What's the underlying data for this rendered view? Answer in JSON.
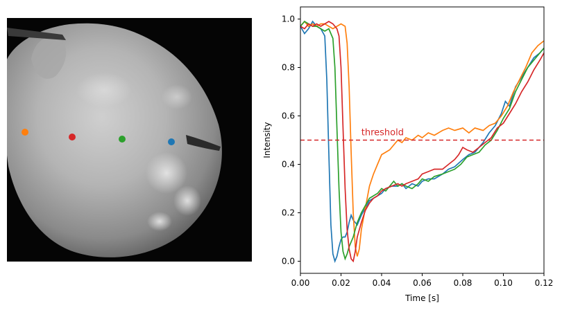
{
  "image_panel": {
    "markers": [
      {
        "name": "orange",
        "color": "#ff7f0e"
      },
      {
        "name": "red",
        "color": "#d62728"
      },
      {
        "name": "green",
        "color": "#2ca02c"
      },
      {
        "name": "blue",
        "color": "#1f77b4"
      }
    ]
  },
  "chart_data": {
    "type": "line",
    "title": "",
    "xlabel": "Time [s]",
    "ylabel": "Intensity",
    "xlim": [
      0,
      0.12
    ],
    "ylim": [
      -0.05,
      1.05
    ],
    "xticks": [
      0.0,
      0.02,
      0.04,
      0.06,
      0.08,
      0.1,
      0.12
    ],
    "xtick_labels": [
      "0.00",
      "0.02",
      "0.04",
      "0.06",
      "0.08",
      "0.10",
      "0.12"
    ],
    "yticks": [
      0.0,
      0.2,
      0.4,
      0.6,
      0.8,
      1.0
    ],
    "ytick_labels": [
      "0.0",
      "0.2",
      "0.4",
      "0.6",
      "0.8",
      "1.0"
    ],
    "grid": false,
    "threshold": {
      "value": 0.5,
      "label": "threshold",
      "color": "#d62728",
      "style": "dashed"
    },
    "series": [
      {
        "color": "#1f77b4",
        "points": [
          [
            0,
            0.97
          ],
          [
            0.002,
            0.94
          ],
          [
            0.004,
            0.96
          ],
          [
            0.006,
            0.99
          ],
          [
            0.008,
            0.97
          ],
          [
            0.01,
            0.96
          ],
          [
            0.012,
            0.93
          ],
          [
            0.013,
            0.75
          ],
          [
            0.014,
            0.45
          ],
          [
            0.015,
            0.15
          ],
          [
            0.016,
            0.03
          ],
          [
            0.017,
            0.0
          ],
          [
            0.018,
            0.02
          ],
          [
            0.019,
            0.06
          ],
          [
            0.02,
            0.09
          ],
          [
            0.021,
            0.1
          ],
          [
            0.022,
            0.1
          ],
          [
            0.023,
            0.12
          ],
          [
            0.024,
            0.16
          ],
          [
            0.025,
            0.19
          ],
          [
            0.026,
            0.17
          ],
          [
            0.028,
            0.15
          ],
          [
            0.03,
            0.19
          ],
          [
            0.032,
            0.22
          ],
          [
            0.034,
            0.25
          ],
          [
            0.036,
            0.26
          ],
          [
            0.038,
            0.27
          ],
          [
            0.04,
            0.28
          ],
          [
            0.042,
            0.3
          ],
          [
            0.045,
            0.31
          ],
          [
            0.048,
            0.31
          ],
          [
            0.05,
            0.32
          ],
          [
            0.052,
            0.3
          ],
          [
            0.055,
            0.32
          ],
          [
            0.058,
            0.31
          ],
          [
            0.06,
            0.33
          ],
          [
            0.063,
            0.34
          ],
          [
            0.066,
            0.34
          ],
          [
            0.07,
            0.36
          ],
          [
            0.073,
            0.38
          ],
          [
            0.076,
            0.39
          ],
          [
            0.08,
            0.42
          ],
          [
            0.083,
            0.44
          ],
          [
            0.086,
            0.45
          ],
          [
            0.09,
            0.49
          ],
          [
            0.093,
            0.53
          ],
          [
            0.096,
            0.56
          ],
          [
            0.099,
            0.61
          ],
          [
            0.101,
            0.66
          ],
          [
            0.103,
            0.64
          ],
          [
            0.106,
            0.72
          ],
          [
            0.109,
            0.76
          ],
          [
            0.112,
            0.8
          ],
          [
            0.115,
            0.84
          ],
          [
            0.118,
            0.86
          ],
          [
            0.12,
            0.88
          ]
        ]
      },
      {
        "color": "#ff7f0e",
        "points": [
          [
            0,
            0.97
          ],
          [
            0.002,
            0.99
          ],
          [
            0.004,
            0.97
          ],
          [
            0.006,
            0.98
          ],
          [
            0.008,
            0.97
          ],
          [
            0.01,
            0.98
          ],
          [
            0.012,
            0.98
          ],
          [
            0.014,
            0.97
          ],
          [
            0.016,
            0.96
          ],
          [
            0.018,
            0.97
          ],
          [
            0.02,
            0.98
          ],
          [
            0.022,
            0.97
          ],
          [
            0.023,
            0.9
          ],
          [
            0.024,
            0.72
          ],
          [
            0.025,
            0.45
          ],
          [
            0.026,
            0.2
          ],
          [
            0.027,
            0.06
          ],
          [
            0.028,
            0.02
          ],
          [
            0.029,
            0.05
          ],
          [
            0.03,
            0.13
          ],
          [
            0.032,
            0.22
          ],
          [
            0.034,
            0.31
          ],
          [
            0.036,
            0.36
          ],
          [
            0.038,
            0.4
          ],
          [
            0.04,
            0.44
          ],
          [
            0.042,
            0.45
          ],
          [
            0.044,
            0.46
          ],
          [
            0.046,
            0.48
          ],
          [
            0.048,
            0.5
          ],
          [
            0.05,
            0.49
          ],
          [
            0.052,
            0.51
          ],
          [
            0.055,
            0.5
          ],
          [
            0.058,
            0.52
          ],
          [
            0.06,
            0.51
          ],
          [
            0.063,
            0.53
          ],
          [
            0.066,
            0.52
          ],
          [
            0.07,
            0.54
          ],
          [
            0.073,
            0.55
          ],
          [
            0.076,
            0.54
          ],
          [
            0.08,
            0.55
          ],
          [
            0.083,
            0.53
          ],
          [
            0.086,
            0.55
          ],
          [
            0.09,
            0.54
          ],
          [
            0.093,
            0.56
          ],
          [
            0.096,
            0.57
          ],
          [
            0.099,
            0.6
          ],
          [
            0.102,
            0.64
          ],
          [
            0.105,
            0.7
          ],
          [
            0.108,
            0.75
          ],
          [
            0.111,
            0.8
          ],
          [
            0.114,
            0.86
          ],
          [
            0.117,
            0.89
          ],
          [
            0.12,
            0.91
          ]
        ]
      },
      {
        "color": "#2ca02c",
        "points": [
          [
            0,
            0.97
          ],
          [
            0.002,
            0.99
          ],
          [
            0.004,
            0.98
          ],
          [
            0.006,
            0.97
          ],
          [
            0.008,
            0.97
          ],
          [
            0.01,
            0.96
          ],
          [
            0.012,
            0.95
          ],
          [
            0.014,
            0.96
          ],
          [
            0.016,
            0.92
          ],
          [
            0.017,
            0.8
          ],
          [
            0.018,
            0.55
          ],
          [
            0.019,
            0.3
          ],
          [
            0.02,
            0.12
          ],
          [
            0.021,
            0.04
          ],
          [
            0.022,
            0.01
          ],
          [
            0.023,
            0.03
          ],
          [
            0.024,
            0.06
          ],
          [
            0.026,
            0.1
          ],
          [
            0.028,
            0.16
          ],
          [
            0.03,
            0.2
          ],
          [
            0.032,
            0.23
          ],
          [
            0.034,
            0.26
          ],
          [
            0.036,
            0.27
          ],
          [
            0.038,
            0.28
          ],
          [
            0.04,
            0.3
          ],
          [
            0.042,
            0.29
          ],
          [
            0.044,
            0.31
          ],
          [
            0.046,
            0.33
          ],
          [
            0.048,
            0.31
          ],
          [
            0.05,
            0.32
          ],
          [
            0.052,
            0.31
          ],
          [
            0.055,
            0.3
          ],
          [
            0.058,
            0.32
          ],
          [
            0.06,
            0.34
          ],
          [
            0.063,
            0.33
          ],
          [
            0.066,
            0.35
          ],
          [
            0.07,
            0.36
          ],
          [
            0.073,
            0.37
          ],
          [
            0.076,
            0.38
          ],
          [
            0.079,
            0.4
          ],
          [
            0.082,
            0.43
          ],
          [
            0.085,
            0.44
          ],
          [
            0.088,
            0.45
          ],
          [
            0.091,
            0.48
          ],
          [
            0.094,
            0.5
          ],
          [
            0.097,
            0.54
          ],
          [
            0.1,
            0.59
          ],
          [
            0.103,
            0.63
          ],
          [
            0.106,
            0.7
          ],
          [
            0.109,
            0.75
          ],
          [
            0.112,
            0.8
          ],
          [
            0.115,
            0.83
          ],
          [
            0.118,
            0.86
          ],
          [
            0.12,
            0.88
          ]
        ]
      },
      {
        "color": "#d62728",
        "points": [
          [
            0,
            0.97
          ],
          [
            0.002,
            0.96
          ],
          [
            0.004,
            0.98
          ],
          [
            0.006,
            0.97
          ],
          [
            0.008,
            0.98
          ],
          [
            0.01,
            0.97
          ],
          [
            0.012,
            0.98
          ],
          [
            0.014,
            0.99
          ],
          [
            0.016,
            0.98
          ],
          [
            0.018,
            0.96
          ],
          [
            0.019,
            0.93
          ],
          [
            0.02,
            0.8
          ],
          [
            0.021,
            0.55
          ],
          [
            0.022,
            0.3
          ],
          [
            0.023,
            0.13
          ],
          [
            0.024,
            0.05
          ],
          [
            0.025,
            0.01
          ],
          [
            0.026,
            0.0
          ],
          [
            0.027,
            0.04
          ],
          [
            0.028,
            0.1
          ],
          [
            0.03,
            0.16
          ],
          [
            0.032,
            0.21
          ],
          [
            0.034,
            0.24
          ],
          [
            0.036,
            0.26
          ],
          [
            0.038,
            0.27
          ],
          [
            0.04,
            0.29
          ],
          [
            0.042,
            0.3
          ],
          [
            0.045,
            0.31
          ],
          [
            0.048,
            0.32
          ],
          [
            0.05,
            0.31
          ],
          [
            0.052,
            0.32
          ],
          [
            0.055,
            0.33
          ],
          [
            0.058,
            0.34
          ],
          [
            0.06,
            0.36
          ],
          [
            0.063,
            0.37
          ],
          [
            0.066,
            0.38
          ],
          [
            0.07,
            0.38
          ],
          [
            0.073,
            0.4
          ],
          [
            0.076,
            0.42
          ],
          [
            0.078,
            0.44
          ],
          [
            0.08,
            0.47
          ],
          [
            0.082,
            0.46
          ],
          [
            0.085,
            0.45
          ],
          [
            0.088,
            0.47
          ],
          [
            0.091,
            0.49
          ],
          [
            0.094,
            0.51
          ],
          [
            0.097,
            0.55
          ],
          [
            0.1,
            0.57
          ],
          [
            0.103,
            0.61
          ],
          [
            0.106,
            0.65
          ],
          [
            0.109,
            0.7
          ],
          [
            0.112,
            0.74
          ],
          [
            0.115,
            0.79
          ],
          [
            0.118,
            0.83
          ],
          [
            0.12,
            0.86
          ]
        ]
      }
    ]
  }
}
